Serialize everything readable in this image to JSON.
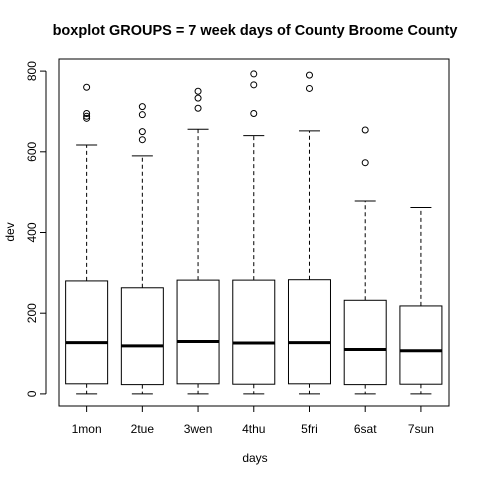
{
  "chart_data": {
    "type": "boxplot",
    "title": "boxplot GROUPS = 7 week days of County Broome County",
    "xlabel": "days",
    "ylabel": "dev",
    "ylim": [
      -30,
      830
    ],
    "yticks": [
      0,
      200,
      400,
      600,
      800
    ],
    "categories": [
      "1mon",
      "2tue",
      "3wen",
      "4thu",
      "5fri",
      "6sat",
      "7sun"
    ],
    "boxes": [
      {
        "min": 0,
        "q1": 25,
        "median": 127,
        "q3": 280,
        "max": 617,
        "outliers": [
          760,
          695,
          688,
          683
        ]
      },
      {
        "min": 0,
        "q1": 23,
        "median": 119,
        "q3": 263,
        "max": 590,
        "outliers": [
          712,
          692,
          650,
          630
        ]
      },
      {
        "min": 0,
        "q1": 25,
        "median": 130,
        "q3": 282,
        "max": 656,
        "outliers": [
          750,
          733,
          708
        ]
      },
      {
        "min": 0,
        "q1": 24,
        "median": 126,
        "q3": 282,
        "max": 640,
        "outliers": [
          793,
          766,
          695
        ]
      },
      {
        "min": 0,
        "q1": 25,
        "median": 127,
        "q3": 283,
        "max": 652,
        "outliers": [
          790,
          757
        ]
      },
      {
        "min": 0,
        "q1": 23,
        "median": 110,
        "q3": 232,
        "max": 478,
        "outliers": [
          654,
          573
        ]
      },
      {
        "min": 0,
        "q1": 24,
        "median": 107,
        "q3": 218,
        "max": 462,
        "outliers": []
      }
    ]
  }
}
